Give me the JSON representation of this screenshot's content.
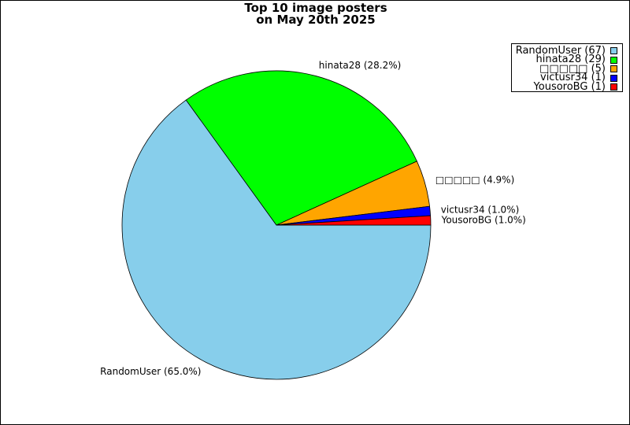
{
  "chart_data": {
    "type": "pie",
    "title": [
      "Top 10 image posters",
      "on May 20th 2025"
    ],
    "slices": [
      {
        "name": "RandomUser",
        "value": 67,
        "percent": "65.0%",
        "color": "#87ceeb",
        "legend_label": "RandomUser (67)",
        "slice_label": "RandomUser (65.0%)"
      },
      {
        "name": "hinata28",
        "value": 29,
        "percent": "28.2%",
        "color": "#00ff00",
        "legend_label": "hinata28 (29)",
        "slice_label": "hinata28 (28.2%)"
      },
      {
        "name": "□□□□□",
        "value": 5,
        "percent": "4.9%",
        "color": "#ffa500",
        "legend_label": "□□□□□ (5)",
        "slice_label": "□□□□□ (4.9%)"
      },
      {
        "name": "victusr34",
        "value": 1,
        "percent": "1.0%",
        "color": "#0000ff",
        "legend_label": "victusr34 (1)",
        "slice_label": "victusr34 (1.0%)"
      },
      {
        "name": "YousoroBG",
        "value": 1,
        "percent": "1.0%",
        "color": "#ff0000",
        "legend_label": "YousoroBG (1)",
        "slice_label": "YousoroBG (1.0%)"
      }
    ],
    "legend_position": "top-right",
    "start_angle": "3 o'clock",
    "direction": "clockwise"
  }
}
